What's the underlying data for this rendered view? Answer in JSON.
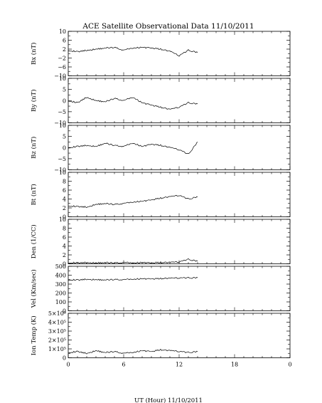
{
  "title": "ACE Satellite Observational Data   11/10/2011",
  "xlabel": "UT (Hour)  11/10/2011",
  "x_ticks": [
    "0",
    "6",
    "12",
    "18",
    "0"
  ],
  "chart_data": [
    {
      "type": "line",
      "ylabel": "Bx (nT)",
      "ylim": [
        -10,
        10
      ],
      "yticks": [
        "10",
        "6",
        "2",
        "−2",
        "−6",
        "−10"
      ],
      "ytick_values": [
        10,
        6,
        2,
        -2,
        -6,
        -10
      ],
      "x": [
        0,
        1,
        2,
        3,
        4,
        5,
        6,
        7,
        8,
        9,
        10,
        11,
        12,
        13,
        14
      ],
      "values": [
        1.5,
        0.8,
        1.5,
        2.0,
        2.5,
        2.8,
        1.5,
        2.5,
        2.8,
        2.5,
        2.0,
        1.0,
        -1.0,
        1.5,
        0.5
      ]
    },
    {
      "type": "line",
      "ylabel": "By (nT)",
      "ylim": [
        -10,
        10
      ],
      "yticks": [
        "10",
        "5",
        "0",
        "−5",
        "−10"
      ],
      "ytick_values": [
        10,
        5,
        0,
        -5,
        -10
      ],
      "x": [
        0,
        1,
        2,
        3,
        4,
        5,
        6,
        7,
        8,
        9,
        10,
        11,
        12,
        13,
        14
      ],
      "values": [
        0,
        -1,
        1.5,
        0,
        -0.5,
        1,
        0,
        1.5,
        -1,
        -2,
        -3,
        -4,
        -3,
        -1,
        -1.5
      ]
    },
    {
      "type": "line",
      "ylabel": "Bz (nT)",
      "ylim": [
        -10,
        10
      ],
      "yticks": [
        "10",
        "5",
        "0",
        "−5",
        "−10"
      ],
      "ytick_values": [
        10,
        5,
        0,
        -5,
        -10
      ],
      "x": [
        0,
        1,
        2,
        3,
        4,
        5,
        6,
        7,
        8,
        9,
        10,
        11,
        12,
        13,
        14
      ],
      "values": [
        0,
        0.5,
        1.0,
        0.5,
        2.0,
        1.0,
        0.5,
        2.0,
        0.5,
        1.5,
        1.0,
        0,
        -1,
        -3,
        2.5
      ]
    },
    {
      "type": "line",
      "ylabel": "Bt (nT)",
      "ylim": [
        0,
        10
      ],
      "yticks": [
        "10",
        "8",
        "6",
        "4",
        "2",
        "0"
      ],
      "ytick_values": [
        10,
        8,
        6,
        4,
        2,
        0
      ],
      "x": [
        0,
        1,
        2,
        3,
        4,
        5,
        6,
        7,
        8,
        9,
        10,
        11,
        12,
        13,
        14
      ],
      "values": [
        2.5,
        2.3,
        2.2,
        2.8,
        3.0,
        2.8,
        3.0,
        3.3,
        3.5,
        3.8,
        4.2,
        4.5,
        4.8,
        4.0,
        4.5
      ]
    },
    {
      "type": "line",
      "ylabel": "Den (1/CC)",
      "ylim": [
        0,
        10
      ],
      "yticks": [
        "10",
        "8",
        "6",
        "4",
        "2",
        "0"
      ],
      "ytick_values": [
        10,
        8,
        6,
        4,
        2,
        0
      ],
      "x": [
        0,
        1,
        2,
        3,
        4,
        5,
        6,
        7,
        8,
        9,
        10,
        11,
        12,
        13,
        14
      ],
      "values": [
        0.3,
        0.2,
        0.3,
        0.2,
        0.3,
        0.2,
        0.3,
        0.2,
        0.3,
        0.2,
        0.3,
        0.3,
        0.4,
        1.0,
        0.6
      ]
    },
    {
      "type": "line",
      "ylabel": "Vel (Km/sec)",
      "ylim": [
        0,
        500
      ],
      "yticks": [
        "500",
        "400",
        "300",
        "200",
        "100",
        "0"
      ],
      "ytick_values": [
        500,
        400,
        300,
        200,
        100,
        0
      ],
      "x": [
        0,
        1,
        2,
        3,
        4,
        5,
        6,
        7,
        8,
        9,
        10,
        11,
        12,
        13,
        14
      ],
      "values": [
        350,
        345,
        355,
        350,
        348,
        352,
        350,
        355,
        360,
        358,
        362,
        365,
        368,
        370,
        372
      ]
    },
    {
      "type": "line",
      "ylabel": "Ion Temp (K)",
      "ylim": [
        0,
        500000
      ],
      "yticks": [
        "5×10⁵",
        "4×10⁵",
        "3×10⁵",
        "2×10⁵",
        "1×10⁵",
        "0"
      ],
      "ytick_values": [
        500000,
        400000,
        300000,
        200000,
        100000,
        0
      ],
      "x": [
        0,
        1,
        2,
        3,
        4,
        5,
        6,
        7,
        8,
        9,
        10,
        11,
        12,
        13,
        14
      ],
      "values": [
        60000,
        70000,
        50000,
        80000,
        60000,
        70000,
        50000,
        60000,
        80000,
        70000,
        90000,
        80000,
        70000,
        60000,
        70000
      ]
    }
  ]
}
